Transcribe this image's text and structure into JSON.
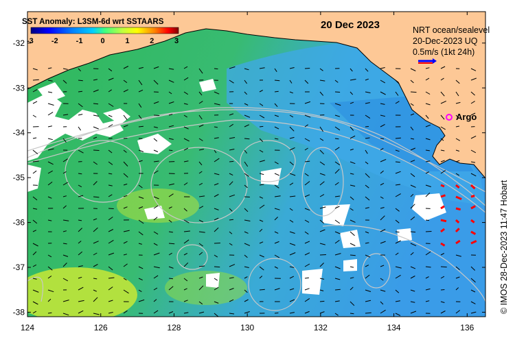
{
  "header": {
    "colorbar_title": "SST Anomaly: L3SM-6d wrt SSTAARS",
    "date": "20 Dec 2023"
  },
  "colorbar": {
    "ticks": [
      "-3",
      "-2",
      "-1",
      "0",
      "1",
      "2",
      "3"
    ],
    "colors": [
      "#000080",
      "#0000ff",
      "#0080ff",
      "#00d0ff",
      "#40ff80",
      "#c0ff40",
      "#ffff00",
      "#ff8000",
      "#ff0000",
      "#800000"
    ]
  },
  "legend": {
    "line1": "NRT ocean/sealevel",
    "line2": "20-Dec-2023 UQ",
    "line3": "0.5m/s (1kt 24h)",
    "arrow_color_a": "#0000ff",
    "arrow_color_b": "#ff0000"
  },
  "argo": {
    "label": "Argo",
    "marker_color": "#ff00ff"
  },
  "axes": {
    "x_ticks": [
      "124",
      "126",
      "128",
      "130",
      "132",
      "134",
      "136"
    ],
    "y_ticks": [
      "-32",
      "-33",
      "-34",
      "-35",
      "-36",
      "-37",
      "-38"
    ],
    "x_range": [
      124,
      136.5
    ],
    "y_range": [
      -38.1,
      -31.3
    ]
  },
  "credit": "© IMOS 28-Dec-2023 11:47 Hobart",
  "colors": {
    "land": "#fdc896",
    "ocean_green": "#3fc63f",
    "ocean_blue": "#3aaee8",
    "cloud": "#ffffff",
    "warm_yellow": "#d8ec2a"
  }
}
